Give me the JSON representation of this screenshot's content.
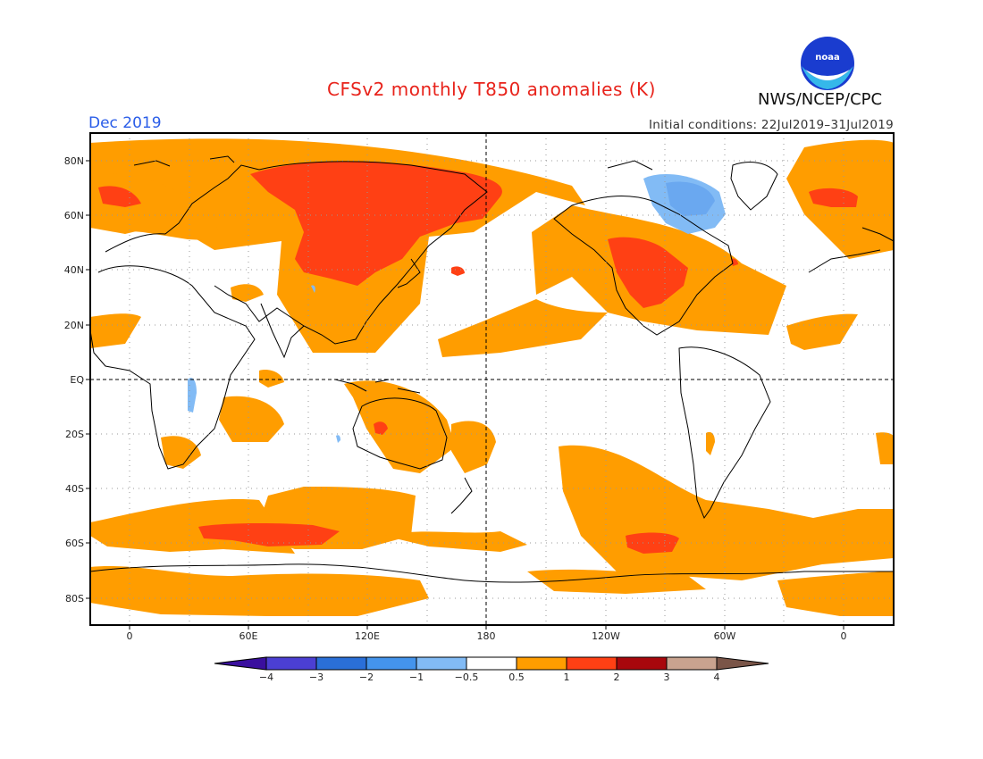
{
  "header": {
    "title": "CFSv2 monthly T850 anomalies (K)",
    "agency": "NWS/NCEP/CPC",
    "logo_text": "noaa",
    "valid_month": "Dec 2019",
    "initial_conditions": "Initial conditions: 22Jul2019–31Jul2019"
  },
  "axes": {
    "y_ticks": [
      "80N",
      "60N",
      "40N",
      "20N",
      "EQ",
      "20S",
      "40S",
      "60S",
      "80S"
    ],
    "x_ticks": [
      "0",
      "60E",
      "120E",
      "180",
      "120W",
      "60W",
      "0"
    ]
  },
  "colorbar": {
    "labels": [
      "−4",
      "−3",
      "−2",
      "−1",
      "−0.5",
      "0.5",
      "1",
      "2",
      "3",
      "4"
    ],
    "colors": [
      "#3a0f9e",
      "#4b3fd3",
      "#2a6fd8",
      "#4494ec",
      "#82bbf5",
      "#ffffff",
      "#ff9d00",
      "#ff4014",
      "#a8070c",
      "#c9a38f",
      "#7a5548"
    ]
  },
  "map_colors": {
    "ocean_grid": "#999999",
    "anom_0_5_to_1": "#ff9d00",
    "anom_1_to_2": "#ff4014",
    "anom_neg_0_5_to_neg_1": "#82bbf5",
    "anom_neg_1_to_neg_2": "#4494ec"
  }
}
